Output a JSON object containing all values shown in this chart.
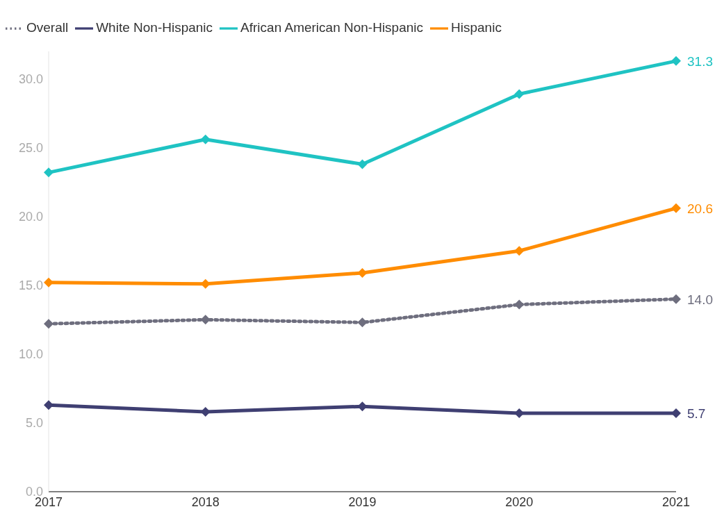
{
  "chart_data": {
    "type": "line",
    "categories": [
      "2017",
      "2018",
      "2019",
      "2020",
      "2021"
    ],
    "series": [
      {
        "name": "Overall",
        "color": "#6e6e7e",
        "line_style": "dotted",
        "values": [
          12.2,
          12.5,
          12.3,
          13.6,
          14.0
        ],
        "value_labels": [
          null,
          null,
          null,
          null,
          "14.0"
        ]
      },
      {
        "name": "White Non-Hispanic",
        "color": "#3f3f72",
        "values": [
          6.3,
          5.8,
          6.2,
          5.7,
          5.7
        ],
        "value_labels": [
          null,
          null,
          null,
          null,
          "5.7"
        ]
      },
      {
        "name": "African American Non-Hispanic",
        "color": "#1fc3c3",
        "values": [
          23.2,
          25.6,
          23.8,
          28.9,
          31.3
        ],
        "value_labels": [
          null,
          null,
          null,
          null,
          "31.3"
        ]
      },
      {
        "name": "Hispanic",
        "color": "#ff8c00",
        "values": [
          15.2,
          15.1,
          15.9,
          17.5,
          20.6
        ],
        "value_labels": [
          null,
          null,
          null,
          null,
          "20.6"
        ]
      }
    ],
    "yticks": [
      {
        "value": 0,
        "label": "0.0"
      },
      {
        "value": 5,
        "label": "5.0"
      },
      {
        "value": 10,
        "label": "10.0"
      },
      {
        "value": 15,
        "label": "15.0"
      },
      {
        "value": 20,
        "label": "20.0"
      },
      {
        "value": 25,
        "label": "25.0"
      },
      {
        "value": 30,
        "label": "30.0"
      }
    ],
    "ylim": [
      0,
      32
    ],
    "legend": "top left",
    "marker": "diamond",
    "line_style": "solid"
  }
}
